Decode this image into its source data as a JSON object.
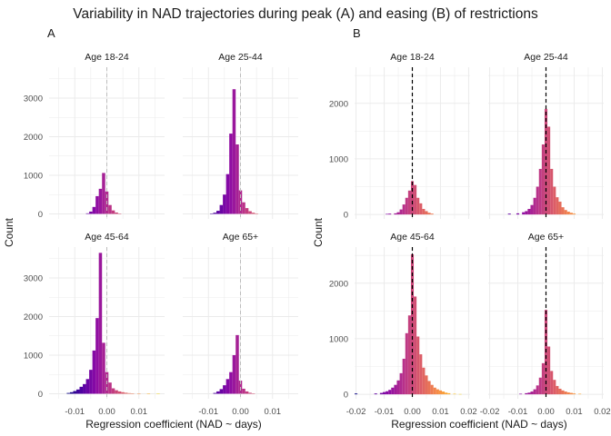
{
  "title": "Variability in NAD trajectories during peak (A) and easing (B) of restrictions",
  "colors": {
    "grid": "#ebebeb",
    "tick_text": "#4d4d4d",
    "text": "#1a1a1a",
    "ref_line_A": "#bdbdbd",
    "ref_line_B": "#000000",
    "palette": [
      "#0d0887",
      "#5402a3",
      "#8b0aa5",
      "#b93289",
      "#db5c68",
      "#f48849",
      "#febb2a",
      "#f0f921"
    ]
  },
  "chart_data": [
    {
      "type": "bar",
      "panel_label": "A",
      "xlabel": "Regression coefficient (NAD ~ days)",
      "ylabel": "Count",
      "xlim": [
        -0.018,
        0.018
      ],
      "ylim": [
        -130,
        3800
      ],
      "x_ticks": [
        -0.01,
        0.0,
        0.01
      ],
      "x_tick_labels": [
        "-0.01",
        "0.00",
        "0.01"
      ],
      "y_ticks": [
        0,
        1000,
        2000,
        3000
      ],
      "y_tick_labels": [
        "0",
        "1000",
        "2000",
        "3000"
      ],
      "color_range": [
        -0.012,
        0.018
      ],
      "reference_line": {
        "x": 0.0,
        "style": "dashed"
      },
      "facets": [
        {
          "name": "Age 18-24",
          "bins": [
            {
              "x": -0.006,
              "count": 15
            },
            {
              "x": -0.005,
              "count": 60
            },
            {
              "x": -0.004,
              "count": 180
            },
            {
              "x": -0.003,
              "count": 460
            },
            {
              "x": -0.002,
              "count": 650
            },
            {
              "x": -0.001,
              "count": 1060
            },
            {
              "x": 0.0,
              "count": 580
            },
            {
              "x": 0.001,
              "count": 230
            },
            {
              "x": 0.002,
              "count": 90
            },
            {
              "x": 0.003,
              "count": 35
            },
            {
              "x": 0.004,
              "count": 10
            }
          ]
        },
        {
          "name": "Age 25-44",
          "bins": [
            {
              "x": -0.009,
              "count": 10
            },
            {
              "x": -0.008,
              "count": 30
            },
            {
              "x": -0.007,
              "count": 80
            },
            {
              "x": -0.006,
              "count": 230
            },
            {
              "x": -0.005,
              "count": 500
            },
            {
              "x": -0.004,
              "count": 1030
            },
            {
              "x": -0.003,
              "count": 2080
            },
            {
              "x": -0.002,
              "count": 3230
            },
            {
              "x": -0.001,
              "count": 1800
            },
            {
              "x": 0.0,
              "count": 610
            },
            {
              "x": 0.001,
              "count": 300
            },
            {
              "x": 0.002,
              "count": 150
            },
            {
              "x": 0.003,
              "count": 70
            },
            {
              "x": 0.004,
              "count": 30
            },
            {
              "x": 0.005,
              "count": 10
            }
          ]
        },
        {
          "name": "Age 45-64",
          "bins": [
            {
              "x": -0.012,
              "count": 20
            },
            {
              "x": -0.011,
              "count": 40
            },
            {
              "x": -0.01,
              "count": 70
            },
            {
              "x": -0.009,
              "count": 110
            },
            {
              "x": -0.008,
              "count": 180
            },
            {
              "x": -0.007,
              "count": 250
            },
            {
              "x": -0.006,
              "count": 380
            },
            {
              "x": -0.005,
              "count": 620
            },
            {
              "x": -0.004,
              "count": 1120
            },
            {
              "x": -0.003,
              "count": 1960
            },
            {
              "x": -0.002,
              "count": 3650
            },
            {
              "x": -0.001,
              "count": 1320
            },
            {
              "x": 0.0,
              "count": 560
            },
            {
              "x": 0.001,
              "count": 290
            },
            {
              "x": 0.002,
              "count": 140
            },
            {
              "x": 0.003,
              "count": 90
            },
            {
              "x": 0.004,
              "count": 60
            },
            {
              "x": 0.005,
              "count": 40
            },
            {
              "x": 0.006,
              "count": 25
            },
            {
              "x": 0.007,
              "count": 15
            },
            {
              "x": 0.008,
              "count": 10
            },
            {
              "x": 0.01,
              "count": 8
            },
            {
              "x": 0.013,
              "count": 5
            },
            {
              "x": 0.016,
              "count": 5
            }
          ]
        },
        {
          "name": "Age 65+",
          "bins": [
            {
              "x": -0.008,
              "count": 20
            },
            {
              "x": -0.007,
              "count": 60
            },
            {
              "x": -0.006,
              "count": 120
            },
            {
              "x": -0.005,
              "count": 220
            },
            {
              "x": -0.004,
              "count": 380
            },
            {
              "x": -0.003,
              "count": 560
            },
            {
              "x": -0.002,
              "count": 1000
            },
            {
              "x": -0.001,
              "count": 1520
            },
            {
              "x": 0.0,
              "count": 340
            },
            {
              "x": 0.001,
              "count": 130
            },
            {
              "x": 0.002,
              "count": 60
            },
            {
              "x": 0.003,
              "count": 25
            },
            {
              "x": 0.004,
              "count": 10
            }
          ]
        }
      ]
    },
    {
      "type": "bar",
      "panel_label": "B",
      "xlabel": "Regression coefficient (NAD ~ days)",
      "ylabel": "Count",
      "xlim": [
        -0.0205,
        0.0205
      ],
      "ylim": [
        -80,
        2650
      ],
      "x_ticks": [
        -0.02,
        -0.01,
        0.0,
        0.01,
        0.02
      ],
      "x_tick_labels": [
        "-0.02",
        "-0.01",
        "0.00",
        "0.01",
        "0.02"
      ],
      "y_ticks": [
        0,
        1000,
        2000
      ],
      "y_tick_labels": [
        "0",
        "1000",
        "2000"
      ],
      "color_range": [
        -0.02,
        0.02
      ],
      "reference_line": {
        "x": 0.0,
        "style": "dashed"
      },
      "facets": [
        {
          "name": "Age 18-24",
          "bins": [
            {
              "x": -0.009,
              "count": 10
            },
            {
              "x": -0.008,
              "count": 15
            },
            {
              "x": -0.006,
              "count": 20
            },
            {
              "x": -0.005,
              "count": 40
            },
            {
              "x": -0.004,
              "count": 90
            },
            {
              "x": -0.003,
              "count": 180
            },
            {
              "x": -0.002,
              "count": 300
            },
            {
              "x": -0.001,
              "count": 430
            },
            {
              "x": 0.0,
              "count": 600
            },
            {
              "x": 0.001,
              "count": 530
            },
            {
              "x": 0.002,
              "count": 300
            },
            {
              "x": 0.003,
              "count": 200
            },
            {
              "x": 0.004,
              "count": 100
            },
            {
              "x": 0.005,
              "count": 60
            },
            {
              "x": 0.006,
              "count": 30
            },
            {
              "x": 0.007,
              "count": 15
            }
          ]
        },
        {
          "name": "Age 25-44",
          "bins": [
            {
              "x": -0.013,
              "count": 15
            },
            {
              "x": -0.01,
              "count": 20
            },
            {
              "x": -0.008,
              "count": 40
            },
            {
              "x": -0.007,
              "count": 60
            },
            {
              "x": -0.006,
              "count": 100
            },
            {
              "x": -0.005,
              "count": 170
            },
            {
              "x": -0.004,
              "count": 300
            },
            {
              "x": -0.003,
              "count": 500
            },
            {
              "x": -0.002,
              "count": 820
            },
            {
              "x": -0.001,
              "count": 1260
            },
            {
              "x": 0.0,
              "count": 1900
            },
            {
              "x": 0.001,
              "count": 1580
            },
            {
              "x": 0.002,
              "count": 820
            },
            {
              "x": 0.003,
              "count": 500
            },
            {
              "x": 0.004,
              "count": 310
            },
            {
              "x": 0.005,
              "count": 230
            },
            {
              "x": 0.006,
              "count": 130
            },
            {
              "x": 0.007,
              "count": 80
            },
            {
              "x": 0.008,
              "count": 50
            },
            {
              "x": 0.009,
              "count": 30
            },
            {
              "x": 0.01,
              "count": 15
            }
          ]
        },
        {
          "name": "Age 45-64",
          "bins": [
            {
              "x": -0.02,
              "count": 15
            },
            {
              "x": -0.013,
              "count": 15
            },
            {
              "x": -0.011,
              "count": 25
            },
            {
              "x": -0.01,
              "count": 40
            },
            {
              "x": -0.009,
              "count": 55
            },
            {
              "x": -0.008,
              "count": 80
            },
            {
              "x": -0.007,
              "count": 120
            },
            {
              "x": -0.006,
              "count": 170
            },
            {
              "x": -0.005,
              "count": 250
            },
            {
              "x": -0.004,
              "count": 380
            },
            {
              "x": -0.003,
              "count": 640
            },
            {
              "x": -0.002,
              "count": 1100
            },
            {
              "x": -0.001,
              "count": 1420
            },
            {
              "x": 0.0,
              "count": 2520
            },
            {
              "x": 0.001,
              "count": 1760
            },
            {
              "x": 0.002,
              "count": 1040
            },
            {
              "x": 0.003,
              "count": 720
            },
            {
              "x": 0.004,
              "count": 480
            },
            {
              "x": 0.005,
              "count": 340
            },
            {
              "x": 0.006,
              "count": 240
            },
            {
              "x": 0.007,
              "count": 170
            },
            {
              "x": 0.008,
              "count": 120
            },
            {
              "x": 0.009,
              "count": 90
            },
            {
              "x": 0.01,
              "count": 70
            },
            {
              "x": 0.011,
              "count": 50
            },
            {
              "x": 0.012,
              "count": 30
            },
            {
              "x": 0.013,
              "count": 20
            },
            {
              "x": 0.015,
              "count": 10
            },
            {
              "x": 0.017,
              "count": 5
            }
          ]
        },
        {
          "name": "Age 65+",
          "bins": [
            {
              "x": -0.009,
              "count": 10
            },
            {
              "x": -0.007,
              "count": 20
            },
            {
              "x": -0.006,
              "count": 30
            },
            {
              "x": -0.005,
              "count": 50
            },
            {
              "x": -0.004,
              "count": 90
            },
            {
              "x": -0.003,
              "count": 160
            },
            {
              "x": -0.002,
              "count": 300
            },
            {
              "x": -0.001,
              "count": 560
            },
            {
              "x": 0.0,
              "count": 1520
            },
            {
              "x": 0.001,
              "count": 860
            },
            {
              "x": 0.002,
              "count": 420
            },
            {
              "x": 0.003,
              "count": 260
            },
            {
              "x": 0.004,
              "count": 150
            },
            {
              "x": 0.005,
              "count": 100
            },
            {
              "x": 0.006,
              "count": 70
            },
            {
              "x": 0.007,
              "count": 50
            },
            {
              "x": 0.008,
              "count": 35
            },
            {
              "x": 0.009,
              "count": 25
            },
            {
              "x": 0.01,
              "count": 15
            },
            {
              "x": 0.012,
              "count": 10
            }
          ]
        }
      ]
    }
  ]
}
